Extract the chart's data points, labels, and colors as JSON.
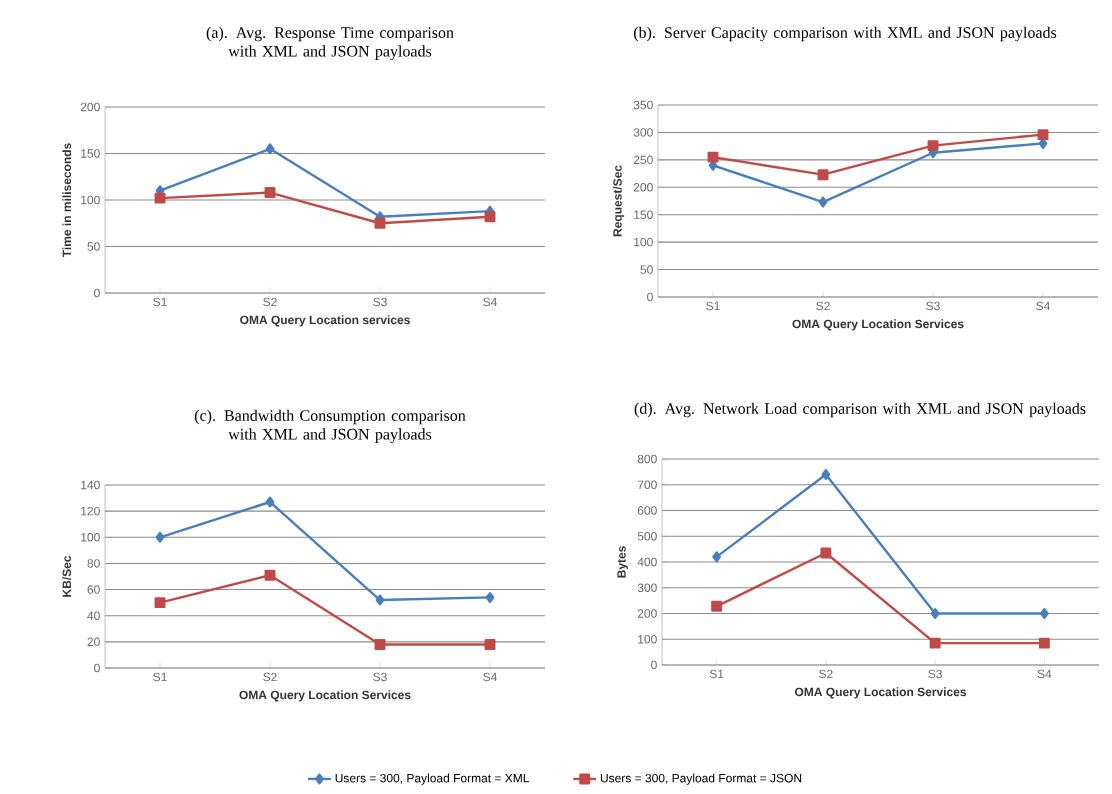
{
  "chart_data": [
    {
      "type": "line",
      "title": "(a). Avg. Response Time comparison with XML and JSON payloads",
      "xlabel": "OMA Query Location services",
      "ylabel": "Time in miliseconds",
      "categories": [
        "S1",
        "S2",
        "S3",
        "S4"
      ],
      "ylim": [
        0,
        200
      ],
      "yticks": [
        0,
        50,
        100,
        150,
        200
      ],
      "grid": "y",
      "series": [
        {
          "color": "#4a7ebb",
          "marker": "diamond",
          "values": [
            110,
            155,
            82,
            88
          ]
        },
        {
          "color": "#be4b48",
          "marker": "square",
          "values": [
            102,
            108,
            75,
            82
          ]
        }
      ]
    },
    {
      "type": "line",
      "title": "(b). Server Capacity comparison with XML and JSON payloads",
      "xlabel": "OMA Query Location Services",
      "ylabel": "Request/Sec",
      "categories": [
        "S1",
        "S2",
        "S3",
        "S4"
      ],
      "ylim": [
        0,
        350
      ],
      "yticks": [
        0,
        50,
        100,
        150,
        200,
        250,
        300,
        350
      ],
      "grid": "y",
      "series": [
        {
          "color": "#4a7ebb",
          "marker": "diamond",
          "values": [
            240,
            173,
            263,
            280
          ]
        },
        {
          "color": "#be4b48",
          "marker": "square",
          "values": [
            255,
            223,
            276,
            296
          ]
        }
      ]
    },
    {
      "type": "line",
      "title": "(c). Bandwidth Consumption comparison with XML and JSON payloads",
      "xlabel": "OMA Query Location Services",
      "ylabel": "KB/Sec",
      "categories": [
        "S1",
        "S2",
        "S3",
        "S4"
      ],
      "ylim": [
        0,
        140
      ],
      "yticks": [
        0,
        20,
        40,
        60,
        80,
        100,
        120,
        140
      ],
      "grid": "y",
      "series": [
        {
          "color": "#4a7ebb",
          "marker": "diamond",
          "values": [
            100,
            127,
            52,
            54
          ]
        },
        {
          "color": "#be4b48",
          "marker": "square",
          "values": [
            50,
            71,
            18,
            18
          ]
        }
      ]
    },
    {
      "type": "line",
      "title": "(d). Avg. Network Load comparison with XML and JSON payloads",
      "xlabel": "OMA Query Location Services",
      "ylabel": "Bytes",
      "categories": [
        "S1",
        "S2",
        "S3",
        "S4"
      ],
      "ylim": [
        0,
        800
      ],
      "yticks": [
        0,
        100,
        200,
        300,
        400,
        500,
        600,
        700,
        800
      ],
      "grid": "y",
      "legend": "bottom",
      "series": [
        {
          "name": "Users = 300, Payload Format = XML",
          "color": "#4a7ebb",
          "marker": "diamond",
          "values": [
            420,
            740,
            200,
            200
          ]
        },
        {
          "name": "Users = 300, Payload Format = JSON",
          "color": "#be4b48",
          "marker": "square",
          "values": [
            228,
            435,
            85,
            85
          ]
        }
      ]
    }
  ]
}
